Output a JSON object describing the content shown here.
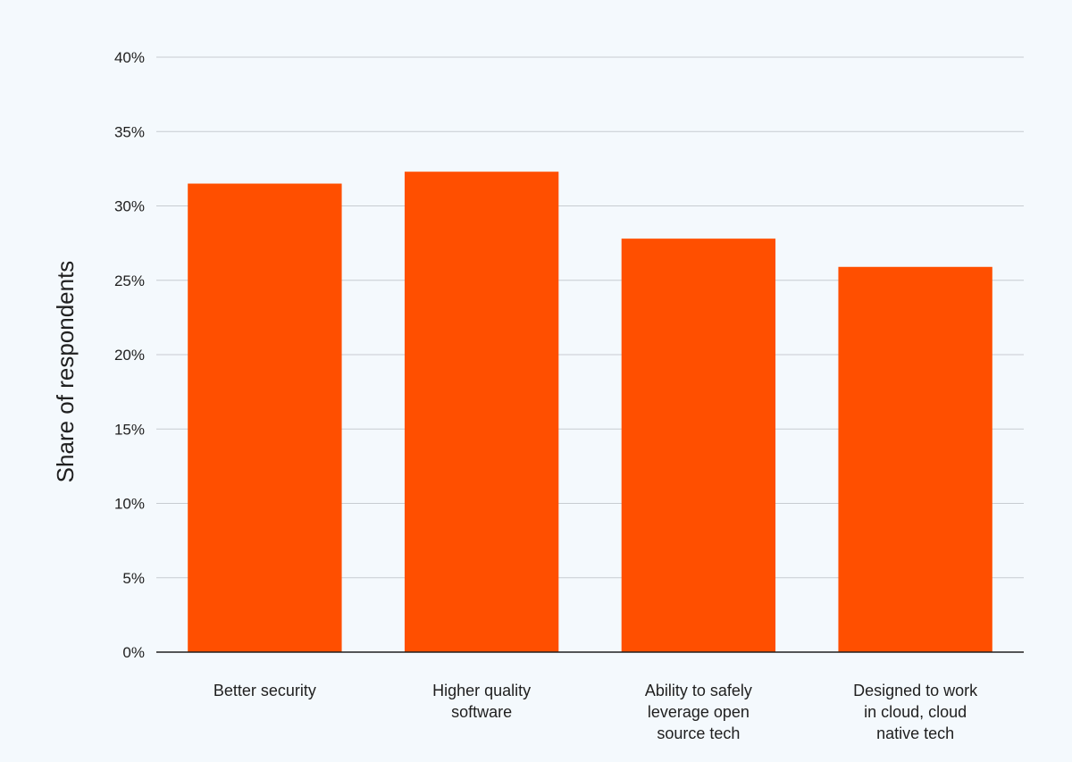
{
  "chart_data": {
    "type": "bar",
    "title": "",
    "xlabel": "",
    "ylabel": "Share of respondents",
    "ylim": [
      0,
      40
    ],
    "yticks": [
      "0%",
      "5%",
      "10%",
      "15%",
      "20%",
      "25%",
      "30%",
      "35%",
      "40%"
    ],
    "categories": [
      [
        "Better security"
      ],
      [
        "Higher quality",
        "software"
      ],
      [
        "Ability to safely",
        "leverage open",
        "source tech"
      ],
      [
        "Designed to work",
        "in cloud, cloud",
        "native tech"
      ]
    ],
    "values": [
      31.5,
      32.3,
      27.8,
      25.9
    ],
    "bar_color": "#ff4f00",
    "grid": true
  }
}
